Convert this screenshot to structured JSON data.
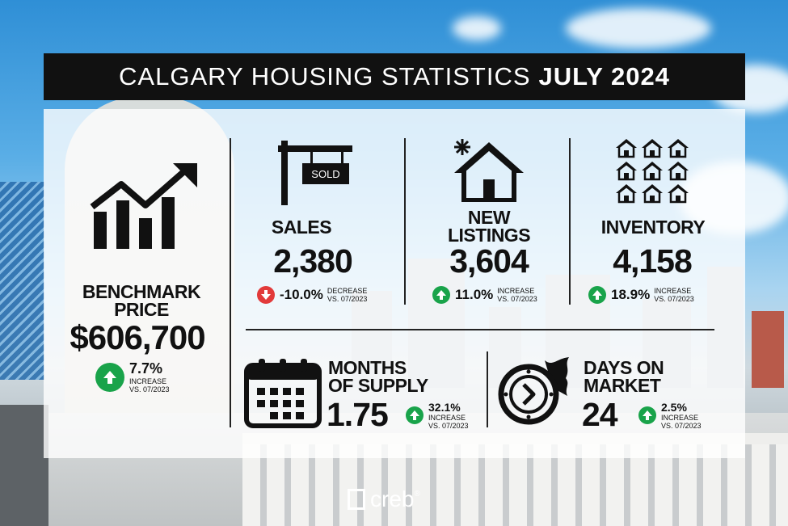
{
  "banner": {
    "title_light": "CALGARY HOUSING STATISTICS",
    "title_bold": "JULY 2024"
  },
  "benchmark": {
    "label_line1": "BENCHMARK",
    "label_line2": "PRICE",
    "value": "$606,700",
    "pct": "7.7%",
    "note_line1": "INCREASE",
    "note_line2": "VS. 07/2023",
    "direction": "up",
    "icon": "trending-up-chart-icon"
  },
  "sales": {
    "sign": "SOLD",
    "label": "SALES",
    "value": "2,380",
    "pct": "-10.0%",
    "note_line1": "DECREASE",
    "note_line2": "VS. 07/2023",
    "direction": "down",
    "icon": "sold-sign-icon"
  },
  "new_listings": {
    "label_line1": "NEW",
    "label_line2": "LISTINGS",
    "value": "3,604",
    "pct": "11.0%",
    "note_line1": "INCREASE",
    "note_line2": "VS. 07/2023",
    "direction": "up",
    "icon": "new-house-icon"
  },
  "inventory": {
    "label": "INVENTORY",
    "value": "4,158",
    "pct": "18.9%",
    "note_line1": "INCREASE",
    "note_line2": "VS. 07/2023",
    "direction": "up",
    "icon": "houses-grid-icon"
  },
  "months_of_supply": {
    "label_line1": "MONTHS",
    "label_line2": "OF SUPPLY",
    "value": "1.75",
    "pct": "32.1%",
    "note_line1": "INCREASE",
    "note_line2": "VS. 07/2023",
    "direction": "up",
    "icon": "calendar-icon"
  },
  "days_on_market": {
    "label_line1": "DAYS ON",
    "label_line2": "MARKET",
    "value": "24",
    "pct": "2.5%",
    "note_line1": "INCREASE",
    "note_line2": "VS. 07/2023",
    "direction": "up",
    "icon": "fast-clock-icon"
  },
  "footer": {
    "logo_text": "creb",
    "trademark": "®"
  },
  "colors": {
    "increase": "#19a34a",
    "decrease": "#e23a3a",
    "banner": "#111111"
  }
}
